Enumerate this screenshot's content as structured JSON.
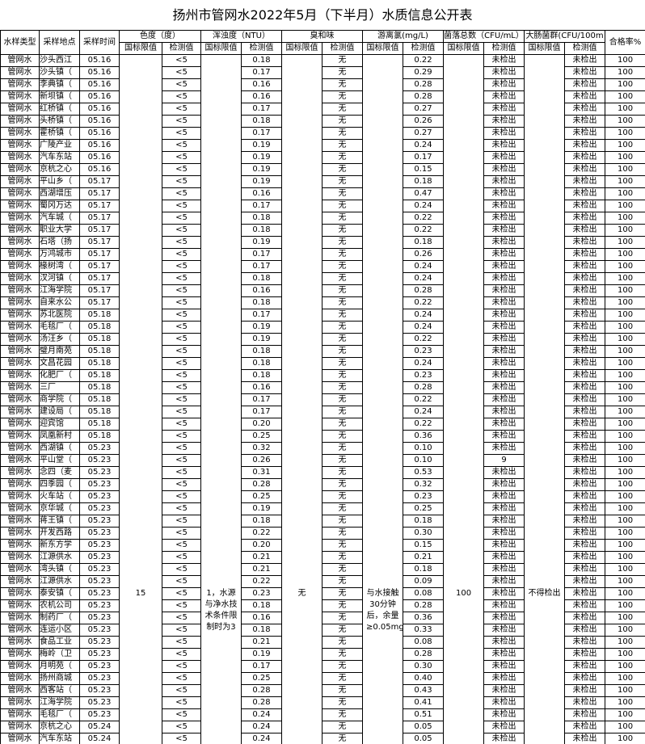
{
  "title": "扬州市管网水2022年5月（下半月）水质信息公开表",
  "headers": {
    "type": "水样类型",
    "location": "采样地点",
    "time": "采样时间",
    "color": "色度（度）",
    "turbidity": "浑浊度（NTU）",
    "odor": "臭和味",
    "chlorine": "游离氯(mg/L)",
    "colony": "菌落总数（CFU/mL）",
    "coliform": "大肠菌群(CFU/100m",
    "rate": "合格率%",
    "limit": "国标限值",
    "measured": "检测值"
  },
  "limits": [
    "15",
    "1，水源与净水技术条件限制时为3",
    "无",
    "与水接触30分钟后，余量≥0.05mg/L",
    "100",
    "不得检出"
  ],
  "rows": [
    [
      "管网水",
      "沙头西江",
      "05.16",
      "<5",
      "0.18",
      "无",
      "0.22",
      "未检出",
      "未检出",
      "100"
    ],
    [
      "管网水",
      "沙头镇（",
      "05.16",
      "<5",
      "0.17",
      "无",
      "0.29",
      "未检出",
      "未检出",
      "100"
    ],
    [
      "管网水",
      "李典镇（",
      "05.16",
      "<5",
      "0.16",
      "无",
      "0.28",
      "未检出",
      "未检出",
      "100"
    ],
    [
      "管网水",
      "新坝镇（",
      "05.16",
      "<5",
      "0.16",
      "无",
      "0.28",
      "未检出",
      "未检出",
      "100"
    ],
    [
      "管网水",
      "红桥镇（",
      "05.16",
      "<5",
      "0.17",
      "无",
      "0.27",
      "未检出",
      "未检出",
      "100"
    ],
    [
      "管网水",
      "头桥镇（",
      "05.16",
      "<5",
      "0.18",
      "无",
      "0.26",
      "未检出",
      "未检出",
      "100"
    ],
    [
      "管网水",
      "霍桥镇（",
      "05.16",
      "<5",
      "0.17",
      "无",
      "0.27",
      "未检出",
      "未检出",
      "100"
    ],
    [
      "管网水",
      "广陵产业",
      "05.16",
      "<5",
      "0.19",
      "无",
      "0.24",
      "未检出",
      "未检出",
      "100"
    ],
    [
      "管网水",
      "汽车东站",
      "05.16",
      "<5",
      "0.19",
      "无",
      "0.17",
      "未检出",
      "未检出",
      "100"
    ],
    [
      "管网水",
      "京杭之心",
      "05.16",
      "<5",
      "0.19",
      "无",
      "0.15",
      "未检出",
      "未检出",
      "100"
    ],
    [
      "管网水",
      "平山乡（",
      "05.17",
      "<5",
      "0.19",
      "无",
      "0.18",
      "未检出",
      "未检出",
      "100"
    ],
    [
      "管网水",
      "西湖增压",
      "05.17",
      "<5",
      "0.16",
      "无",
      "0.47",
      "未检出",
      "未检出",
      "100"
    ],
    [
      "管网水",
      "蜀冈万达",
      "05.17",
      "<5",
      "0.17",
      "无",
      "0.24",
      "未检出",
      "未检出",
      "100"
    ],
    [
      "管网水",
      "汽车城（",
      "05.17",
      "<5",
      "0.18",
      "无",
      "0.22",
      "未检出",
      "未检出",
      "100"
    ],
    [
      "管网水",
      "职业大学",
      "05.17",
      "<5",
      "0.18",
      "无",
      "0.22",
      "未检出",
      "未检出",
      "100"
    ],
    [
      "管网水",
      "石塔（扬",
      "05.17",
      "<5",
      "0.19",
      "无",
      "0.18",
      "未检出",
      "未检出",
      "100"
    ],
    [
      "管网水",
      "万鸿城市",
      "05.17",
      "<5",
      "0.17",
      "无",
      "0.26",
      "未检出",
      "未检出",
      "100"
    ],
    [
      "管网水",
      "椽树湾（",
      "05.17",
      "<5",
      "0.17",
      "无",
      "0.24",
      "未检出",
      "未检出",
      "100"
    ],
    [
      "管网水",
      "汊河镇（",
      "05.17",
      "<5",
      "0.18",
      "无",
      "0.24",
      "未检出",
      "未检出",
      "100"
    ],
    [
      "管网水",
      "江海学院",
      "05.17",
      "<5",
      "0.16",
      "无",
      "0.28",
      "未检出",
      "未检出",
      "100"
    ],
    [
      "管网水",
      "自来水公",
      "05.17",
      "<5",
      "0.18",
      "无",
      "0.22",
      "未检出",
      "未检出",
      "100"
    ],
    [
      "管网水",
      "苏北医院",
      "05.18",
      "<5",
      "0.17",
      "无",
      "0.24",
      "未检出",
      "未检出",
      "100"
    ],
    [
      "管网水",
      "毛毯厂（",
      "05.18",
      "<5",
      "0.19",
      "无",
      "0.24",
      "未检出",
      "未检出",
      "100"
    ],
    [
      "管网水",
      "汤汪乡（",
      "05.18",
      "<5",
      "0.19",
      "无",
      "0.22",
      "未检出",
      "未检出",
      "100"
    ],
    [
      "管网水",
      "璧月南苑",
      "05.18",
      "<5",
      "0.18",
      "无",
      "0.23",
      "未检出",
      "未检出",
      "100"
    ],
    [
      "管网水",
      "文昌花园",
      "05.18",
      "<5",
      "0.18",
      "无",
      "0.24",
      "未检出",
      "未检出",
      "100"
    ],
    [
      "管网水",
      "化肥厂（",
      "05.18",
      "<5",
      "0.18",
      "无",
      "0.23",
      "未检出",
      "未检出",
      "100"
    ],
    [
      "管网水",
      "三厂",
      "05.18",
      "<5",
      "0.16",
      "无",
      "0.28",
      "未检出",
      "未检出",
      "100"
    ],
    [
      "管网水",
      "商学院（",
      "05.18",
      "<5",
      "0.17",
      "无",
      "0.22",
      "未检出",
      "未检出",
      "100"
    ],
    [
      "管网水",
      "建设局（",
      "05.18",
      "<5",
      "0.17",
      "无",
      "0.24",
      "未检出",
      "未检出",
      "100"
    ],
    [
      "管网水",
      "迎宾馆",
      "05.18",
      "<5",
      "0.20",
      "无",
      "0.22",
      "未检出",
      "未检出",
      "100"
    ],
    [
      "管网水",
      "凤凰新村",
      "05.18",
      "<5",
      "0.25",
      "无",
      "0.36",
      "未检出",
      "未检出",
      "100"
    ],
    [
      "管网水",
      "西湖镇（",
      "05.23",
      "<5",
      "0.32",
      "无",
      "0.10",
      "未检出",
      "未检出",
      "100"
    ],
    [
      "管网水",
      "平山堂（",
      "05.23",
      "<5",
      "0.26",
      "无",
      "0.10",
      "9",
      "未检出",
      "100"
    ],
    [
      "管网水",
      "念四（麦",
      "05.23",
      "<5",
      "0.31",
      "无",
      "0.53",
      "未检出",
      "未检出",
      "100"
    ],
    [
      "管网水",
      "四季园（",
      "05.23",
      "<5",
      "0.28",
      "无",
      "0.32",
      "未检出",
      "未检出",
      "100"
    ],
    [
      "管网水",
      "火车站（",
      "05.23",
      "<5",
      "0.25",
      "无",
      "0.23",
      "未检出",
      "未检出",
      "100"
    ],
    [
      "管网水",
      "京华城（",
      "05.23",
      "<5",
      "0.19",
      "无",
      "0.25",
      "未检出",
      "未检出",
      "100"
    ],
    [
      "管网水",
      "蒋王镇（",
      "05.23",
      "<5",
      "0.18",
      "无",
      "0.18",
      "未检出",
      "未检出",
      "100"
    ],
    [
      "管网水",
      "开发西路",
      "05.23",
      "<5",
      "0.22",
      "无",
      "0.30",
      "未检出",
      "未检出",
      "100"
    ],
    [
      "管网水",
      "新东方学",
      "05.23",
      "<5",
      "0.20",
      "无",
      "0.15",
      "未检出",
      "未检出",
      "100"
    ],
    [
      "管网水",
      "江源供水",
      "05.23",
      "<5",
      "0.21",
      "无",
      "0.21",
      "未检出",
      "未检出",
      "100"
    ],
    [
      "管网水",
      "湾头镇（",
      "05.23",
      "<5",
      "0.21",
      "无",
      "0.18",
      "未检出",
      "未检出",
      "100"
    ],
    [
      "管网水",
      "江源供水",
      "05.23",
      "<5",
      "0.22",
      "无",
      "0.09",
      "未检出",
      "未检出",
      "100"
    ],
    [
      "管网水",
      "泰安镇（",
      "05.23",
      "<5",
      "0.23",
      "无",
      "0.08",
      "未检出",
      "未检出",
      "100"
    ],
    [
      "管网水",
      "农机公司",
      "05.23",
      "<5",
      "0.18",
      "无",
      "0.28",
      "未检出",
      "未检出",
      "100"
    ],
    [
      "管网水",
      "制药厂（",
      "05.23",
      "<5",
      "0.16",
      "无",
      "0.36",
      "未检出",
      "未检出",
      "100"
    ],
    [
      "管网水",
      "连运小区",
      "05.23",
      "<5",
      "0.18",
      "无",
      "0.33",
      "未检出",
      "未检出",
      "100"
    ],
    [
      "管网水",
      "食品工业",
      "05.23",
      "<5",
      "0.21",
      "无",
      "0.08",
      "未检出",
      "未检出",
      "100"
    ],
    [
      "管网水",
      "梅岭（卫",
      "05.23",
      "<5",
      "0.19",
      "无",
      "0.28",
      "未检出",
      "未检出",
      "100"
    ],
    [
      "管网水",
      "月明苑（",
      "05.23",
      "<5",
      "0.17",
      "无",
      "0.30",
      "未检出",
      "未检出",
      "100"
    ],
    [
      "管网水",
      "扬州商城",
      "05.23",
      "<5",
      "0.25",
      "无",
      "0.40",
      "未检出",
      "未检出",
      "100"
    ],
    [
      "管网水",
      "西客站（",
      "05.23",
      "<5",
      "0.28",
      "无",
      "0.43",
      "未检出",
      "未检出",
      "100"
    ],
    [
      "管网水",
      "江海学院",
      "05.23",
      "<5",
      "0.28",
      "无",
      "0.41",
      "未检出",
      "未检出",
      "100"
    ],
    [
      "管网水",
      "毛毯厂（",
      "05.23",
      "<5",
      "0.24",
      "无",
      "0.51",
      "未检出",
      "未检出",
      "100"
    ],
    [
      "管网水",
      "京杭之心",
      "05.24",
      "<5",
      "0.24",
      "无",
      "0.05",
      "未检出",
      "未检出",
      "100"
    ],
    [
      "管网水",
      "汽车东站",
      "05.24",
      "<5",
      "0.24",
      "无",
      "0.05",
      "未检出",
      "未检出",
      "100"
    ]
  ]
}
